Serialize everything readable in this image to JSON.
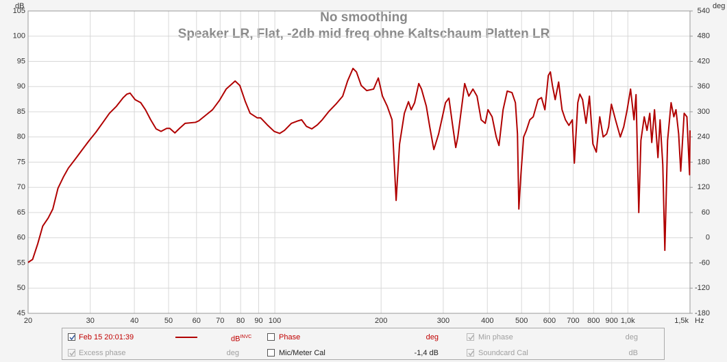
{
  "chart_data": {
    "type": "line",
    "title": "No smoothing",
    "subtitle": "Speaker LR, Flat, -2db mid freq ohne Kaltschaum Platten LR",
    "xlabel": "Hz",
    "ylabel": "dB",
    "y2label": "deg",
    "log_x": true,
    "grid": true,
    "xlim": [
      20,
      1500
    ],
    "ylim": [
      45,
      105
    ],
    "y2lim": [
      -180,
      540
    ],
    "xticks": [
      20,
      30,
      40,
      50,
      60,
      70,
      80,
      90,
      100,
      200,
      300,
      400,
      500,
      600,
      700,
      800,
      900,
      {
        "value": 1000,
        "label": "1,0k"
      },
      {
        "value": 1500,
        "label": "1,5k"
      }
    ],
    "yticks": [
      45,
      50,
      55,
      60,
      65,
      70,
      75,
      80,
      85,
      90,
      95,
      100,
      105
    ],
    "y2ticks": [
      -180,
      -120,
      -60,
      0,
      60,
      120,
      180,
      240,
      300,
      360,
      420,
      480,
      540
    ],
    "x": [
      20.0,
      20.6,
      21.3,
      22.0,
      22.8,
      23.5,
      24.3,
      25.2,
      26.0,
      27.2,
      28.5,
      29.8,
      31.1,
      32.6,
      34.0,
      35.6,
      37.2,
      38.1,
      38.9,
      40.2,
      41.7,
      43.0,
      44.5,
      46.1,
      47.6,
      49.4,
      50.4,
      52.1,
      53.7,
      55.7,
      59.6,
      60.9,
      63.7,
      66.6,
      69.6,
      72.8,
      77.2,
      79.6,
      82.5,
      85.1,
      89.1,
      91.1,
      95.2,
      99.6,
      103.2,
      106.5,
      111.4,
      116.4,
      119.1,
      122.9,
      127.3,
      132.0,
      136.2,
      142.4,
      148.9,
      155.7,
      160.7,
      166.5,
      170.3,
      175.7,
      182.1,
      190.4,
      196.4,
      201.8,
      208.2,
      214.8,
      220.6,
      225.6,
      232.8,
      239.1,
      243.4,
      248.9,
      255.7,
      260.3,
      268.6,
      274.7,
      282.1,
      291.1,
      304.4,
      311.3,
      318.3,
      325.5,
      329.9,
      345.0,
      354.4,
      364.1,
      373.9,
      384.1,
      394.5,
      401.6,
      412.6,
      423.8,
      431.5,
      443.2,
      455.3,
      469.7,
      480.3,
      486.8,
      491.2,
      497.8,
      506.8,
      515.9,
      527.6,
      539.5,
      556.7,
      569.3,
      582.2,
      595.3,
      603.4,
      611.5,
      622.6,
      636.7,
      651.1,
      665.8,
      680.8,
      696.2,
      705.5,
      721.5,
      731.2,
      744.4,
      761.3,
      778.4,
      796.2,
      814.2,
      832.6,
      851.4,
      870.7,
      882.3,
      898.3,
      922.7,
      952.0,
      973.6,
      995.6,
      1018,
      1041,
      1055,
      1074,
      1089,
      1113,
      1133,
      1154,
      1169,
      1190,
      1217,
      1234,
      1256,
      1273,
      1296,
      1326,
      1350,
      1369,
      1393,
      1412,
      1444,
      1470,
      1496,
      1500
    ],
    "series": [
      {
        "name": "Feb 15 20:01:39",
        "color": "#b00000",
        "values": [
          55.1,
          55.7,
          58.8,
          62.3,
          63.9,
          65.7,
          69.8,
          72.1,
          73.8,
          75.6,
          77.5,
          79.3,
          80.9,
          82.9,
          84.7,
          86.1,
          87.8,
          88.5,
          88.7,
          87.4,
          86.8,
          85.4,
          83.4,
          81.6,
          81.1,
          81.7,
          81.7,
          80.8,
          81.7,
          82.7,
          82.9,
          83.2,
          84.3,
          85.4,
          87.2,
          89.5,
          91.1,
          90.2,
          87.0,
          84.7,
          83.8,
          83.8,
          82.4,
          81.1,
          80.7,
          81.3,
          82.7,
          83.2,
          83.4,
          82.1,
          81.6,
          82.4,
          83.4,
          85.1,
          86.5,
          88.1,
          91.1,
          93.6,
          92.9,
          90.2,
          89.2,
          89.5,
          91.7,
          88.1,
          86.1,
          83.4,
          67.4,
          78.6,
          84.7,
          87.0,
          85.4,
          86.8,
          90.6,
          89.5,
          86.1,
          82.0,
          77.5,
          80.6,
          86.8,
          87.7,
          82.7,
          77.9,
          80.0,
          90.6,
          88.1,
          89.5,
          88.1,
          83.4,
          82.7,
          85.4,
          84.0,
          80.0,
          78.3,
          85.4,
          89.1,
          88.8,
          86.8,
          80.6,
          65.7,
          72.5,
          80.0,
          81.3,
          83.4,
          84.0,
          87.4,
          87.8,
          85.4,
          92.2,
          92.9,
          90.2,
          87.4,
          90.9,
          85.4,
          83.4,
          82.3,
          83.4,
          74.8,
          86.8,
          88.5,
          87.4,
          82.7,
          88.1,
          78.6,
          77.0,
          84.0,
          80.0,
          80.6,
          82.0,
          86.5,
          83.4,
          80.0,
          82.0,
          85.4,
          89.5,
          83.4,
          88.4,
          65.0,
          79.3,
          84.0,
          81.3,
          84.7,
          78.9,
          85.4,
          75.9,
          83.4,
          74.5,
          57.5,
          79.3,
          86.8,
          84.0,
          85.4,
          80.6,
          73.2,
          84.7,
          84.0,
          72.5,
          81.3
        ]
      }
    ]
  },
  "legend_panel": {
    "series_unit": "dB",
    "series_unit_flag": "INVC",
    "phase": {
      "label": "Phase",
      "unit": "deg"
    },
    "min_phase": {
      "label": "Min phase",
      "unit": "deg"
    },
    "excess_phase": {
      "label": "Excess phase",
      "unit": "deg"
    },
    "mic_meter_cal": {
      "label": "Mic/Meter Cal",
      "value": "-1,4 dB"
    },
    "soundcard_cal": {
      "label": "Soundcard Cal",
      "unit": "dB"
    }
  }
}
